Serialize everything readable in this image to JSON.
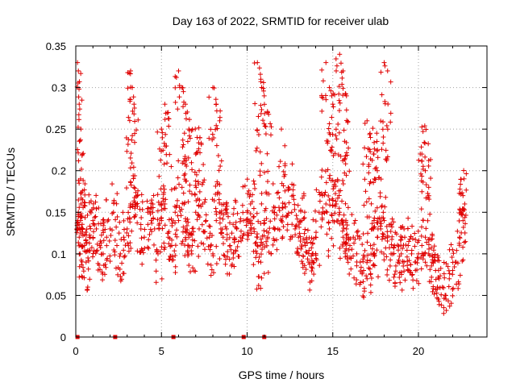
{
  "chart_data": {
    "type": "scatter",
    "title": "Day 163 of 2022, SRMTID for receiver ulab",
    "xlabel": "GPS time / hours",
    "ylabel": "SRMTID / TECUs",
    "xlim": [
      0,
      24
    ],
    "ylim": [
      0,
      0.35
    ],
    "x_ticks": [
      0,
      5,
      10,
      15,
      20
    ],
    "y_ticks": [
      0,
      0.05,
      0.1,
      0.15,
      0.2,
      0.25,
      0.3,
      0.35
    ],
    "x_tick_labels": [
      "0",
      "5",
      "10",
      "15",
      "20"
    ],
    "y_tick_labels": [
      "0",
      "0.05",
      "0.1",
      "0.15",
      "0.2",
      "0.25",
      "0.3",
      "0.35"
    ],
    "grid": true,
    "marker": "plus",
    "color": "#e00000",
    "series": [
      {
        "name": "SRMTID",
        "description_points": "Dense red '+' markers; approx band 0.05–0.2 TECU across 0–22.7 h, with sparse spikes to ~0.34",
        "x": [
          0.1,
          0.15,
          0.2,
          0.25,
          0.3,
          0.4,
          0.5,
          0.6,
          0.8,
          1.0,
          1.2,
          1.4,
          1.6,
          1.8,
          2.0,
          2.2,
          2.4,
          2.6,
          2.8,
          3.0,
          3.2,
          3.4,
          3.6,
          3.8,
          4.0,
          4.2,
          4.4,
          4.6,
          4.8,
          5.0,
          5.2,
          5.4,
          5.6,
          5.8,
          6.0,
          6.2,
          6.4,
          6.6,
          6.8,
          7.0,
          7.2,
          7.4,
          7.6,
          7.8,
          8.0,
          8.2,
          8.4,
          8.6,
          8.8,
          9.0,
          9.2,
          9.4,
          9.6,
          9.8,
          10.0,
          10.2,
          10.4,
          10.6,
          10.8,
          11.0,
          11.2,
          11.4,
          11.6,
          11.8,
          12.0,
          12.2,
          12.4,
          12.6,
          12.8,
          13.0,
          13.2,
          13.4,
          13.6,
          13.8,
          14.0,
          14.2,
          14.4,
          14.6,
          14.8,
          15.0,
          15.2,
          15.4,
          15.6,
          15.8,
          16.0,
          16.2,
          16.4,
          16.6,
          16.8,
          17.0,
          17.2,
          17.4,
          17.6,
          17.8,
          18.0,
          18.2,
          18.4,
          18.6,
          18.8,
          19.0,
          19.2,
          19.4,
          19.6,
          19.8,
          20.0,
          20.2,
          20.4,
          20.6,
          20.8,
          21.0,
          21.2,
          21.4,
          21.6,
          21.8,
          22.0,
          22.2,
          22.4,
          22.6,
          0.1,
          0.15,
          0.2,
          0.3,
          3.2,
          3.3,
          3.4,
          5.0,
          5.2,
          5.4,
          6.0,
          6.2,
          6.4,
          6.6,
          7.0,
          7.2,
          8.0,
          8.2,
          8.4,
          10.6,
          10.8,
          11.0,
          11.2,
          12.0,
          12.2,
          14.6,
          14.8,
          15.0,
          15.2,
          15.4,
          15.6,
          15.8,
          17.0,
          17.2,
          17.4,
          17.6,
          18.0,
          18.2,
          20.2,
          20.4,
          20.6,
          22.6,
          22.7
        ],
        "y": [
          0.14,
          0.15,
          0.12,
          0.1,
          0.16,
          0.13,
          0.11,
          0.09,
          0.12,
          0.14,
          0.13,
          0.11,
          0.1,
          0.12,
          0.13,
          0.15,
          0.11,
          0.1,
          0.12,
          0.13,
          0.16,
          0.18,
          0.17,
          0.13,
          0.12,
          0.15,
          0.14,
          0.13,
          0.1,
          0.14,
          0.16,
          0.12,
          0.11,
          0.15,
          0.14,
          0.18,
          0.13,
          0.12,
          0.11,
          0.15,
          0.13,
          0.16,
          0.14,
          0.12,
          0.1,
          0.14,
          0.15,
          0.12,
          0.13,
          0.11,
          0.1,
          0.13,
          0.12,
          0.14,
          0.15,
          0.16,
          0.13,
          0.12,
          0.09,
          0.14,
          0.12,
          0.1,
          0.15,
          0.13,
          0.14,
          0.16,
          0.18,
          0.15,
          0.13,
          0.12,
          0.14,
          0.11,
          0.09,
          0.1,
          0.12,
          0.15,
          0.17,
          0.16,
          0.13,
          0.14,
          0.16,
          0.15,
          0.12,
          0.13,
          0.11,
          0.12,
          0.1,
          0.09,
          0.08,
          0.07,
          0.11,
          0.1,
          0.12,
          0.13,
          0.14,
          0.12,
          0.1,
          0.11,
          0.09,
          0.1,
          0.12,
          0.11,
          0.1,
          0.09,
          0.1,
          0.11,
          0.12,
          0.1,
          0.09,
          0.08,
          0.07,
          0.06,
          0.05,
          0.07,
          0.08,
          0.09,
          0.12,
          0.14,
          0.33,
          0.32,
          0.28,
          0.25,
          0.32,
          0.3,
          0.28,
          0.25,
          0.28,
          0.27,
          0.32,
          0.3,
          0.28,
          0.25,
          0.22,
          0.2,
          0.3,
          0.28,
          0.26,
          0.33,
          0.31,
          0.29,
          0.27,
          0.25,
          0.23,
          0.33,
          0.3,
          0.28,
          0.32,
          0.34,
          0.32,
          0.29,
          0.26,
          0.24,
          0.22,
          0.2,
          0.33,
          0.32,
          0.22,
          0.2,
          0.18,
          0.17,
          0.16
        ]
      }
    ],
    "zero_markers_x": [
      0.1,
      2.3,
      5.7,
      9.8,
      11.0
    ]
  }
}
